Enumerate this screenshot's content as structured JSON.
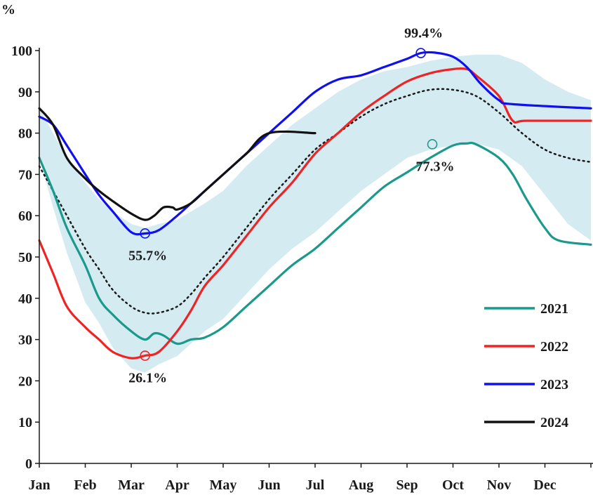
{
  "chart_data": {
    "type": "line",
    "title": "",
    "ylabel": "%",
    "xlabel": "",
    "ylim": [
      0,
      100
    ],
    "y_ticks": [
      0,
      10,
      20,
      30,
      40,
      50,
      60,
      70,
      80,
      90,
      100
    ],
    "y_tick_labels": [
      "0",
      "10",
      "20",
      "30",
      "40",
      "50",
      "60",
      "70",
      "80",
      "90",
      "100"
    ],
    "x_ticks": [
      "Jan",
      "Feb",
      "Mar",
      "Apr",
      "May",
      "Jun",
      "Jul",
      "Aug",
      "Sep",
      "Oct",
      "Nov",
      "Dec"
    ],
    "grid": false,
    "legend_position": "bottom-right",
    "band": {
      "color": "#d4ebf2",
      "lower": [
        [
          0,
          74
        ],
        [
          0.3,
          62
        ],
        [
          0.6,
          51
        ],
        [
          1.0,
          39
        ],
        [
          1.3,
          34
        ],
        [
          1.6,
          28
        ],
        [
          2.0,
          23
        ],
        [
          2.3,
          22
        ],
        [
          2.6,
          24
        ],
        [
          3.0,
          26
        ],
        [
          3.3,
          29
        ],
        [
          3.6,
          32
        ],
        [
          4.0,
          35
        ],
        [
          4.5,
          41
        ],
        [
          5.0,
          47
        ],
        [
          5.5,
          52
        ],
        [
          6.0,
          56
        ],
        [
          6.5,
          61
        ],
        [
          7.0,
          66
        ],
        [
          7.5,
          70
        ],
        [
          8.0,
          74
        ],
        [
          8.5,
          76
        ],
        [
          9.0,
          77
        ],
        [
          9.5,
          77.5
        ],
        [
          10.0,
          76
        ],
        [
          10.5,
          72
        ],
        [
          11.0,
          65
        ],
        [
          11.5,
          58
        ],
        [
          12,
          54
        ]
      ],
      "upper": [
        [
          0,
          86
        ],
        [
          0.3,
          80
        ],
        [
          0.6,
          74
        ],
        [
          1.0,
          68
        ],
        [
          1.3,
          64
        ],
        [
          1.6,
          61
        ],
        [
          2.0,
          58
        ],
        [
          2.3,
          57
        ],
        [
          2.6,
          58
        ],
        [
          3.0,
          59
        ],
        [
          3.3,
          61
        ],
        [
          3.6,
          63
        ],
        [
          4.0,
          66
        ],
        [
          4.5,
          72
        ],
        [
          5.0,
          77
        ],
        [
          5.5,
          82
        ],
        [
          6.0,
          86
        ],
        [
          6.5,
          90
        ],
        [
          7.0,
          93
        ],
        [
          7.5,
          95
        ],
        [
          8.0,
          96
        ],
        [
          8.5,
          97.5
        ],
        [
          9.0,
          98.5
        ],
        [
          9.5,
          99
        ],
        [
          10.0,
          99
        ],
        [
          10.5,
          97
        ],
        [
          11.0,
          93
        ],
        [
          11.5,
          90
        ],
        [
          12,
          88
        ]
      ]
    },
    "average": {
      "style": "dotted",
      "color": "#1a1a1a",
      "points": [
        [
          0,
          72
        ],
        [
          0.3,
          66
        ],
        [
          0.6,
          60
        ],
        [
          1.0,
          52
        ],
        [
          1.3,
          47
        ],
        [
          1.6,
          42
        ],
        [
          2.0,
          38
        ],
        [
          2.3,
          36.5
        ],
        [
          2.6,
          36.5
        ],
        [
          3.0,
          38
        ],
        [
          3.3,
          41
        ],
        [
          3.6,
          45
        ],
        [
          4.0,
          50
        ],
        [
          4.5,
          57
        ],
        [
          5.0,
          64
        ],
        [
          5.5,
          70
        ],
        [
          6.0,
          76
        ],
        [
          6.5,
          80
        ],
        [
          7.0,
          84
        ],
        [
          7.5,
          87
        ],
        [
          8.0,
          89
        ],
        [
          8.5,
          90.5
        ],
        [
          9.0,
          90.5
        ],
        [
          9.5,
          89
        ],
        [
          10.0,
          85
        ],
        [
          10.5,
          80
        ],
        [
          11.0,
          76
        ],
        [
          11.5,
          74
        ],
        [
          12,
          73
        ]
      ]
    },
    "series": [
      {
        "name": "2021",
        "color": "#1b998b",
        "points": [
          [
            0,
            74
          ],
          [
            0.3,
            66
          ],
          [
            0.6,
            57
          ],
          [
            1.0,
            48
          ],
          [
            1.3,
            40
          ],
          [
            1.6,
            36
          ],
          [
            2.0,
            32
          ],
          [
            2.3,
            30
          ],
          [
            2.5,
            31.5
          ],
          [
            2.7,
            31
          ],
          [
            3.0,
            29
          ],
          [
            3.3,
            30
          ],
          [
            3.6,
            30.5
          ],
          [
            4.0,
            33
          ],
          [
            4.5,
            38
          ],
          [
            5.0,
            43
          ],
          [
            5.5,
            48
          ],
          [
            6.0,
            52
          ],
          [
            6.5,
            57
          ],
          [
            7.0,
            62
          ],
          [
            7.5,
            67
          ],
          [
            8.0,
            70.5
          ],
          [
            8.5,
            74
          ],
          [
            9.0,
            77
          ],
          [
            9.3,
            77.5
          ],
          [
            9.5,
            77.3
          ],
          [
            10.0,
            74
          ],
          [
            10.3,
            70
          ],
          [
            10.6,
            64
          ],
          [
            11.0,
            57
          ],
          [
            11.3,
            54
          ],
          [
            12,
            53
          ]
        ]
      },
      {
        "name": "2022",
        "color": "#ee2424",
        "points": [
          [
            0,
            54
          ],
          [
            0.3,
            46
          ],
          [
            0.6,
            38
          ],
          [
            1.0,
            33
          ],
          [
            1.3,
            30
          ],
          [
            1.6,
            27
          ],
          [
            2.0,
            25.5
          ],
          [
            2.3,
            26.1
          ],
          [
            2.6,
            27
          ],
          [
            3.0,
            32
          ],
          [
            3.3,
            37
          ],
          [
            3.6,
            43
          ],
          [
            4.0,
            48
          ],
          [
            4.5,
            55
          ],
          [
            5.0,
            62
          ],
          [
            5.5,
            68
          ],
          [
            6.0,
            75
          ],
          [
            6.5,
            80
          ],
          [
            7.0,
            85
          ],
          [
            7.5,
            89
          ],
          [
            8.0,
            92.5
          ],
          [
            8.5,
            94.5
          ],
          [
            9.0,
            95.5
          ],
          [
            9.3,
            95.5
          ],
          [
            9.5,
            94
          ],
          [
            10.0,
            89
          ],
          [
            10.3,
            83
          ],
          [
            10.6,
            83
          ],
          [
            12,
            83
          ]
        ]
      },
      {
        "name": "2023",
        "color": "#1010ee",
        "points": [
          [
            0,
            84
          ],
          [
            0.3,
            82
          ],
          [
            0.6,
            77
          ],
          [
            1.0,
            70
          ],
          [
            1.3,
            65
          ],
          [
            1.6,
            61
          ],
          [
            2.0,
            56
          ],
          [
            2.3,
            55.7
          ],
          [
            2.6,
            56.5
          ],
          [
            3.0,
            60
          ],
          [
            3.3,
            63
          ],
          [
            3.6,
            66
          ],
          [
            4.0,
            70
          ],
          [
            4.5,
            75
          ],
          [
            5.0,
            80
          ],
          [
            5.5,
            85
          ],
          [
            6.0,
            90
          ],
          [
            6.5,
            93
          ],
          [
            7.0,
            94
          ],
          [
            7.5,
            96
          ],
          [
            8.0,
            98
          ],
          [
            8.3,
            99.4
          ],
          [
            8.6,
            99.5
          ],
          [
            9.0,
            98.5
          ],
          [
            9.3,
            96
          ],
          [
            9.6,
            92
          ],
          [
            10.0,
            88
          ],
          [
            10.3,
            87
          ],
          [
            12,
            86
          ]
        ]
      },
      {
        "name": "2024",
        "color": "#111111",
        "points": [
          [
            0,
            86
          ],
          [
            0.3,
            82
          ],
          [
            0.6,
            74
          ],
          [
            1.0,
            69
          ],
          [
            1.3,
            66
          ],
          [
            1.6,
            63.5
          ],
          [
            2.0,
            60.5
          ],
          [
            2.3,
            59
          ],
          [
            2.5,
            60
          ],
          [
            2.7,
            62
          ],
          [
            2.9,
            62
          ],
          [
            3.0,
            61.5
          ],
          [
            3.3,
            63
          ],
          [
            3.6,
            66
          ],
          [
            4.0,
            70
          ],
          [
            4.5,
            75
          ],
          [
            5.0,
            80
          ],
          [
            6.0,
            80
          ]
        ]
      }
    ],
    "annotations": [
      {
        "text": "99.4%",
        "x": 8.3,
        "y": 99.4,
        "series": "2023",
        "label_pos": "above"
      },
      {
        "text": "77.3%",
        "x": 8.55,
        "y": 77.3,
        "series": "2021",
        "label_pos": "below"
      },
      {
        "text": "55.7%",
        "x": 2.3,
        "y": 55.7,
        "series": "2023",
        "label_pos": "below"
      },
      {
        "text": "26.1%",
        "x": 2.3,
        "y": 26.1,
        "series": "2022",
        "label_pos": "below"
      }
    ]
  }
}
